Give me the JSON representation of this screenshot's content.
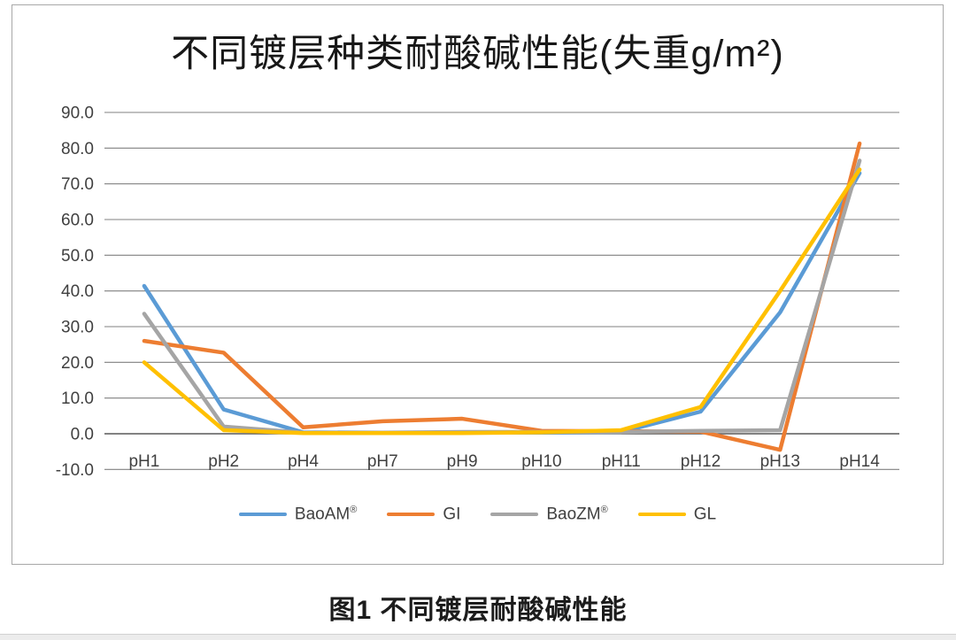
{
  "page": {
    "caption": "图1 不同镀层耐酸碱性能"
  },
  "chart_data": {
    "type": "line",
    "title": "不同镀层种类耐酸碱性能(失重g/m²)",
    "categories": [
      "pH1",
      "pH2",
      "pH4",
      "pH7",
      "pH9",
      "pH10",
      "pH11",
      "pH12",
      "pH13",
      "pH14"
    ],
    "series": [
      {
        "name": "BaoAM",
        "mark": "®",
        "color": "#5B9BD5",
        "values": [
          41.4,
          6.8,
          0.4,
          0.3,
          0.3,
          0.3,
          0.5,
          6.2,
          34.0,
          73.0
        ]
      },
      {
        "name": "GI",
        "mark": "",
        "color": "#ED7D31",
        "values": [
          26.0,
          22.7,
          1.8,
          3.5,
          4.2,
          0.8,
          0.7,
          0.6,
          -4.5,
          81.3
        ]
      },
      {
        "name": "BaoZM",
        "mark": "®",
        "color": "#A5A5A5",
        "values": [
          33.6,
          2.0,
          0.3,
          0.3,
          0.5,
          0.5,
          0.5,
          0.8,
          1.0,
          76.5
        ]
      },
      {
        "name": "GL",
        "mark": "",
        "color": "#FFC000",
        "values": [
          20.0,
          1.0,
          0.2,
          0.2,
          0.2,
          0.4,
          1.0,
          7.5,
          40.0,
          74.0
        ]
      }
    ],
    "ylim": [
      -10,
      90
    ],
    "ytick_step": 10,
    "ytick_labels": [
      "-10.0",
      "0.0",
      "10.0",
      "20.0",
      "30.0",
      "40.0",
      "50.0",
      "60.0",
      "70.0",
      "80.0",
      "90.0"
    ],
    "grid": "horizontal",
    "legend_position": "bottom",
    "colors": {
      "gridline": "#808080",
      "zero_axis": "#595959",
      "tick_label": "#404040"
    }
  }
}
